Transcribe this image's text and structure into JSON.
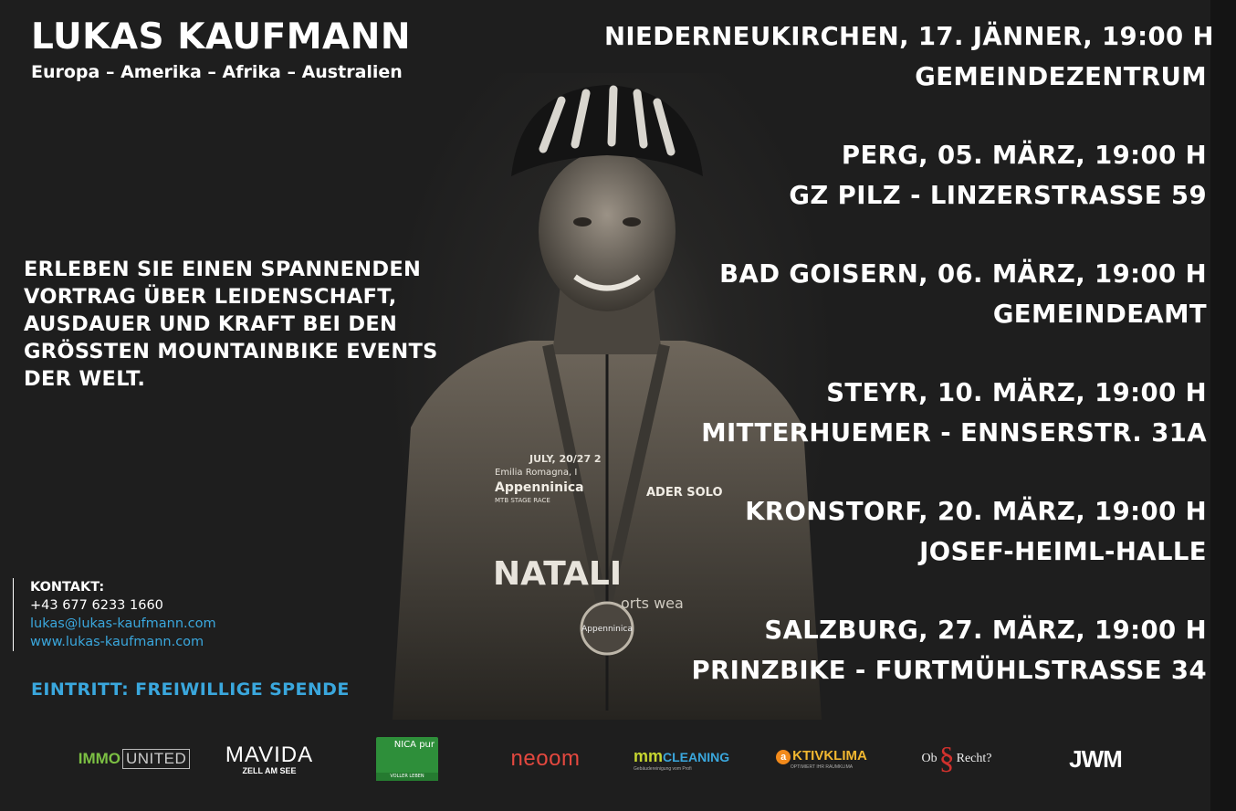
{
  "header": {
    "name": "LUKAS KAUFMANN",
    "regions": "Europa – Amerika – Afrika – Australien"
  },
  "intro": {
    "lines": [
      "ERLEBEN SIE EINEN SPANNENDEN",
      "VORTRAG ÜBER LEIDENSCHAFT,",
      "AUSDAUER UND KRAFT BEI DEN",
      "GRÖSSTEN MOUNTAINBIKE EVENTS",
      "DER WELT."
    ]
  },
  "events": [
    {
      "when": "NIEDERNEUKIRCHEN, 17. JÄNNER, 19:00 H",
      "where": "GEMEINDEZENTRUM"
    },
    {
      "when": "PERG, 05. MÄRZ, 19:00 H",
      "where": "GZ PILZ - LINZERSTRASSE 59"
    },
    {
      "when": "BAD GOISERN, 06. MÄRZ, 19:00 H",
      "where": "GEMEINDEAMT"
    },
    {
      "when": "STEYR, 10. MÄRZ, 19:00 H",
      "where": "MITTERHUEMER - ENNSERSTR. 31A"
    },
    {
      "when": "KRONSTORF, 20. MÄRZ, 19:00 H",
      "where": "JOSEF-HEIML-HALLE"
    },
    {
      "when": "SALZBURG, 27. MÄRZ, 19:00 H",
      "where": "PRINZBIKE - FURTMÜHLSTRASSE 34"
    }
  ],
  "contact": {
    "label": "KONTAKT:",
    "phone": "+43 677 6233 1660",
    "email": "lukas@lukas-kaufmann.com",
    "web": "www.lukas-kaufmann.com"
  },
  "entry": "EINTRITT: FREIWILLIGE SPENDE",
  "jersey": {
    "medal_text": "Appenninica",
    "chest_text": "Appenninica",
    "race_text": "MTB STAGE RACE",
    "dates_text": "JULY, 20/27 2",
    "region_text": "Emilia Romagna, I",
    "solo_text": "ADER SOLO",
    "brand_text": "NATALI",
    "brand_sub": "orts wea"
  },
  "sponsors": {
    "immo": {
      "a": "IMMO",
      "b": "UNITED"
    },
    "mavida": {
      "name": "MAVIDA",
      "sub": "ZELL AM SEE"
    },
    "nica": {
      "name": "NICA pur",
      "tag": "VOLLER LEBEN"
    },
    "neoom": "neoom",
    "mm": {
      "mm": "mm",
      "name": "CLEANING",
      "sub": "Gebäudereinigung vom Profi"
    },
    "aktiv": {
      "c": "a",
      "name": "KTIVKLIMA",
      "sub": "OPTIMIERT IHR RAUMKLIMA"
    },
    "obs": {
      "ob": "Ob",
      "para": "§",
      "recht": "Recht",
      "q": "?"
    },
    "jwm": "JWM"
  },
  "colors": {
    "background": "#1e1e1e",
    "accent_blue": "#3aa7dd",
    "text": "#ffffff"
  }
}
